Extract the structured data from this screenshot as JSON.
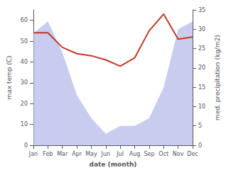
{
  "chart_data": {
    "type": "line",
    "categories": [
      "Jan",
      "Feb",
      "Mar",
      "Apr",
      "May",
      "Jun",
      "Jul",
      "Aug",
      "Sep",
      "Oct",
      "Nov",
      "Dec"
    ],
    "series": [
      {
        "type": "area",
        "color": "#b0b8e8",
        "axis": "y2",
        "values": [
          29,
          32,
          24,
          13,
          7,
          3,
          5,
          5,
          7,
          15,
          30,
          32
        ]
      },
      {
        "type": "line",
        "color": "#c0392b",
        "values": [
          54,
          54,
          47,
          44,
          43,
          41,
          38,
          42,
          55,
          63,
          51,
          52
        ]
      }
    ],
    "xlabel": "date (month)",
    "ylabel": "max temp (C)",
    "y2label": "med. precipitation (kg/m2)",
    "ylim": [
      0,
      65
    ],
    "yticks": [
      0,
      10,
      20,
      30,
      40,
      50,
      60
    ],
    "y2lim": [
      0,
      35
    ],
    "y2ticks": [
      0,
      5,
      10,
      15,
      20,
      25,
      30,
      35
    ],
    "grid": false
  }
}
